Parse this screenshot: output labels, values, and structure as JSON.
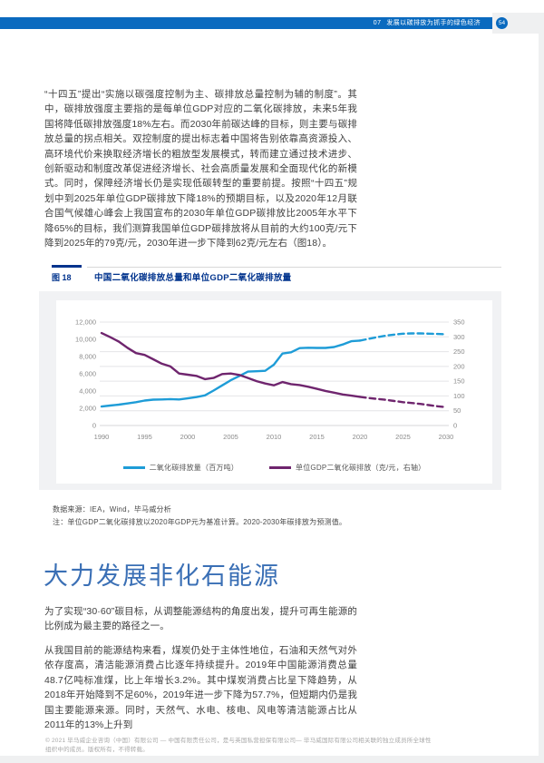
{
  "header": {
    "section_no": "07",
    "section_title": "发展以碳排放为抓手的绿色经济",
    "page_number": "54"
  },
  "intro_paragraph": "“十四五”提出“实施以碳强度控制为主、碳排放总量控制为辅的制度”。其中，碳排放强度主要指的是每单位GDP对应的二氧化碳排放，未来5年我国将降低碳排放强度18%左右。而2030年前碳达峰的目标，则主要与碳排放总量的拐点相关。双控制度的提出标志着中国将告别依靠高资源投入、高环境代价来换取经济增长的粗放型发展模式，转而建立通过技术进步、创新驱动和制度改革促进经济增长、社会高质量发展和全面现代化的新模式。同时，保障经济增长仍是实现低碳转型的重要前提。按照“十四五”规划中到2025年单位GDP碳排放下降18%的预期目标，以及2020年12月联合国气候雄心峰会上我国宣布的2030年单位GDP碳排放比2005年水平下降65%的目标，我们测算我国单位GDP碳排放将从目前的大约100克/元下降到2025年的79克/元，2030年进一步下降到62克/元左右（图18）。",
  "figure": {
    "tag": "图 18",
    "title": "中国二氧化碳排放总量和单位GDP二氧化碳排放量",
    "source_note": "数据来源：IEA，Wind，毕马威分析",
    "calc_note": "注：单位GDP二氧化碳排放以2020年GDP元为基准计算。2020-2030年碳排放为预测值。"
  },
  "chart_data": {
    "type": "line",
    "title": "中国二氧化碳排放总量和单位GDP二氧化碳排放量",
    "x": [
      1990,
      1991,
      1992,
      1993,
      1994,
      1995,
      1996,
      1997,
      1998,
      1999,
      2000,
      2001,
      2002,
      2003,
      2004,
      2005,
      2006,
      2007,
      2008,
      2009,
      2010,
      2011,
      2012,
      2013,
      2014,
      2015,
      2016,
      2017,
      2018,
      2019,
      2020,
      2021,
      2022,
      2023,
      2024,
      2025,
      2026,
      2027,
      2028,
      2029,
      2030
    ],
    "x_ticks": [
      1990,
      1995,
      2000,
      2005,
      2010,
      2015,
      2020,
      2025,
      2030
    ],
    "left_axis": {
      "max": 12000,
      "ticks": [
        0,
        2000,
        4000,
        6000,
        8000,
        10000,
        12000
      ]
    },
    "right_axis": {
      "max": 350,
      "ticks": [
        0,
        50,
        100,
        150,
        200,
        250,
        300,
        350
      ]
    },
    "grid": "horizontal",
    "legend_position": "bottom",
    "forecast_note": "2020-2030 dashed = forecast",
    "series": [
      {
        "name": "二氧化碳排放量（百万吨）",
        "axis": "left",
        "color": "#1e9cd7",
        "forecast_from": 2020,
        "values": [
          2200,
          2320,
          2420,
          2560,
          2700,
          2900,
          3000,
          3020,
          3060,
          3020,
          3150,
          3300,
          3500,
          4050,
          4650,
          5250,
          5750,
          6250,
          6300,
          6350,
          7050,
          8350,
          8500,
          8980,
          9020,
          9000,
          9000,
          9100,
          9400,
          9780,
          9850,
          10050,
          10250,
          10420,
          10550,
          10650,
          10680,
          10680,
          10650,
          10620,
          10580
        ]
      },
      {
        "name": "单位GDP二氧化碳排放（克/元，右轴）",
        "axis": "right",
        "color": "#6f256e",
        "forecast_from": 2020,
        "values": [
          313,
          299,
          284,
          263,
          245,
          239,
          224,
          209,
          200,
          176,
          172,
          168,
          157,
          161,
          174,
          176,
          171,
          161,
          150,
          142,
          136,
          147,
          140,
          137,
          131,
          124,
          117,
          111,
          105,
          101,
          97,
          93,
          90,
          87,
          83,
          79,
          76,
          73,
          69,
          65,
          62
        ]
      }
    ]
  },
  "section": {
    "heading": "大力发展非化石能源",
    "para1": "为了实现“30·60”碳目标，从调整能源结构的角度出发，提升可再生能源的比例成为最主要的路径之一。",
    "para2": "从我国目前的能源结构来看，煤炭仍处于主体性地位，石油和天然气对外依存度高，清洁能源消费占比逐年持续提升。2019年中国能源消费总量48.7亿吨标准煤，比上年增长3.2%。其中煤炭消费占比呈下降趋势，从2018年开始降到不足60%，2019年进一步下降为57.7%，但短期内仍是我国主要能源来源。同时，天然气、水电、核电、风电等清洁能源占比从2011年的13%上升到"
  },
  "footer_text": "© 2021 毕马威企业咨询（中国）有限公司 — 中国有限责任公司，是与英国私营担保有限公司— 毕马威国际有限公司相关联的独立成员所全球性组织中的成员。版权所有，不得转载。"
}
